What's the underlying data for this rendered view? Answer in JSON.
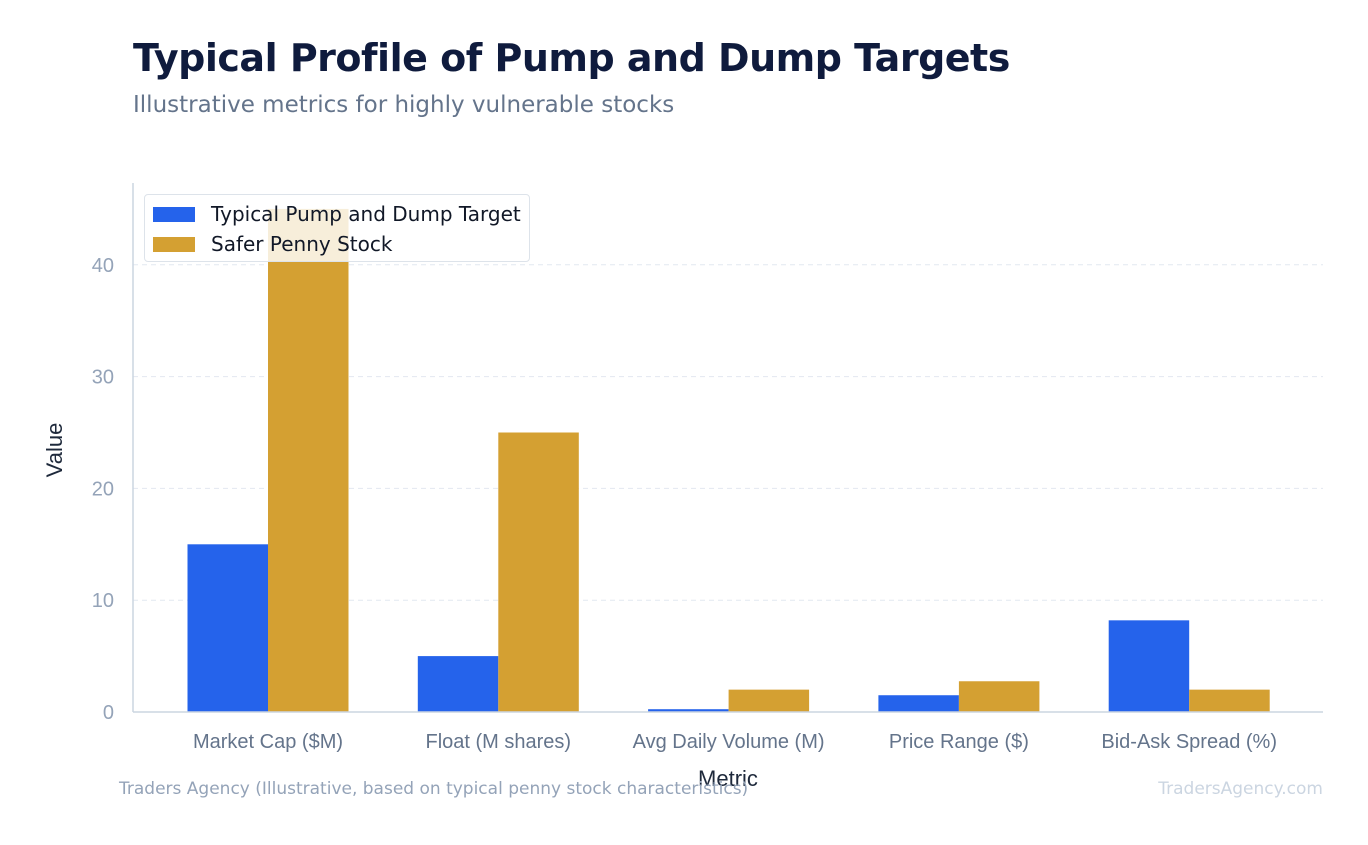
{
  "header": {
    "title": "Typical Profile of Pump and Dump Targets",
    "subtitle": "Illustrative metrics for highly vulnerable stocks"
  },
  "footer": {
    "source": "Traders Agency (Illustrative, based on typical penny stock characteristics)",
    "watermark": "TradersAgency.com"
  },
  "chart_data": {
    "type": "bar",
    "title": "Typical Profile of Pump and Dump Targets",
    "subtitle": "Illustrative metrics for highly vulnerable stocks",
    "xlabel": "Metric",
    "ylabel": "Value",
    "ylim": [
      0,
      47
    ],
    "yticks": [
      0,
      10,
      20,
      30,
      40
    ],
    "grid": true,
    "legend_position": "top-left",
    "categories": [
      "Market Cap ($M)",
      "Float (M shares)",
      "Avg Daily Volume (M)",
      "Price Range ($)",
      "Bid-Ask Spread (%)"
    ],
    "series": [
      {
        "name": "Typical Pump and Dump Target",
        "color": "#2563eb",
        "values": [
          15,
          5,
          0.25,
          1.5,
          8.2
        ]
      },
      {
        "name": "Safer Penny Stock",
        "color": "#d4a032",
        "values": [
          45,
          25,
          2,
          2.75,
          2
        ]
      }
    ]
  }
}
